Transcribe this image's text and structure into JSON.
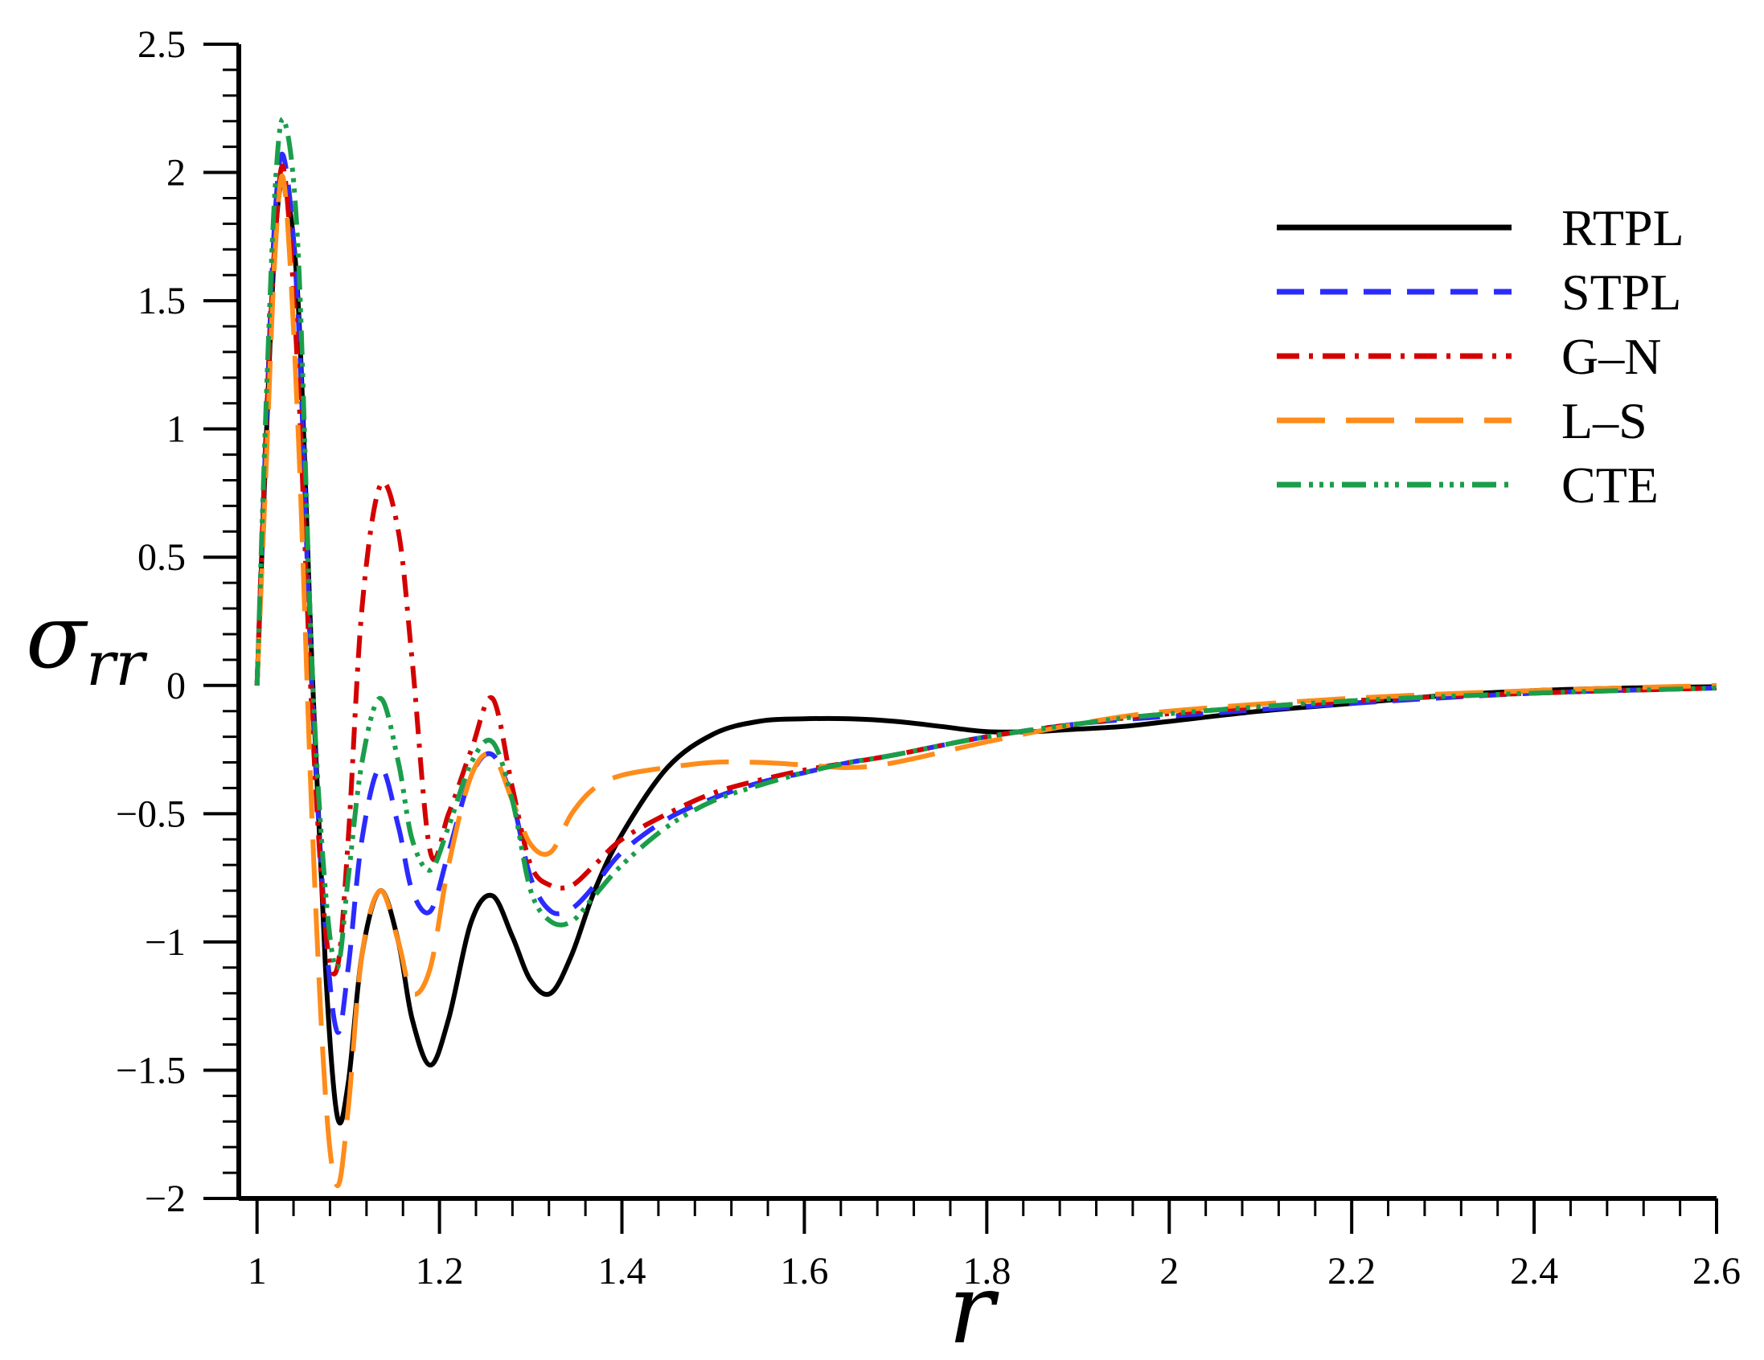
{
  "chart_data": {
    "type": "line",
    "xlabel": "r",
    "ylabel": "σ",
    "ylabel_sub": "rr",
    "xlim": [
      0.98,
      2.6
    ],
    "ylim": [
      -2,
      2.5
    ],
    "xticks": [
      1,
      1.2,
      1.4,
      1.6,
      1.8,
      2,
      2.2,
      2.4,
      2.6
    ],
    "xtick_labels": [
      "1",
      "1.2",
      "1.4",
      "1.6",
      "1.8",
      "2",
      "2.2",
      "2.4",
      "2.6"
    ],
    "yticks": [
      -2,
      -1.5,
      -1,
      -0.5,
      0,
      0.5,
      1,
      1.5,
      2,
      2.5
    ],
    "ytick_labels": [
      "−2",
      "−1.5",
      "−1",
      "−0.5",
      "0",
      "0.5",
      "1",
      "1.5",
      "2",
      "2.5"
    ],
    "grid": false,
    "legend_position": "top-right",
    "series": [
      {
        "name": "RTPL",
        "color": "#000000",
        "dash": "",
        "x": [
          1.0,
          1.01,
          1.02,
          1.03,
          1.045,
          1.06,
          1.075,
          1.088,
          1.1,
          1.115,
          1.135,
          1.155,
          1.17,
          1.19,
          1.21,
          1.235,
          1.258,
          1.28,
          1.3,
          1.322,
          1.345,
          1.37,
          1.4,
          1.45,
          1.5,
          1.55,
          1.6,
          1.65,
          1.7,
          1.75,
          1.8,
          1.85,
          1.9,
          1.95,
          2.0,
          2.1,
          2.2,
          2.3,
          2.4,
          2.5,
          2.6
        ],
        "y": [
          0.0,
          0.95,
          1.75,
          1.95,
          1.5,
          0.1,
          -1.1,
          -1.68,
          -1.55,
          -1.05,
          -0.8,
          -1.0,
          -1.3,
          -1.48,
          -1.3,
          -0.92,
          -0.82,
          -0.98,
          -1.15,
          -1.2,
          -1.05,
          -0.8,
          -0.58,
          -0.32,
          -0.19,
          -0.14,
          -0.13,
          -0.13,
          -0.14,
          -0.16,
          -0.18,
          -0.18,
          -0.17,
          -0.16,
          -0.14,
          -0.1,
          -0.07,
          -0.04,
          -0.02,
          -0.01,
          -0.005
        ]
      },
      {
        "name": "STPL",
        "color": "#2b2bff",
        "dash": "34 20",
        "x": [
          1.0,
          1.01,
          1.02,
          1.03,
          1.045,
          1.06,
          1.075,
          1.088,
          1.1,
          1.115,
          1.135,
          1.155,
          1.17,
          1.19,
          1.21,
          1.235,
          1.258,
          1.28,
          1.3,
          1.322,
          1.345,
          1.37,
          1.4,
          1.45,
          1.5,
          1.55,
          1.6,
          1.65,
          1.7,
          1.8,
          1.9,
          2.0,
          2.2,
          2.4,
          2.6
        ],
        "y": [
          0.0,
          1.0,
          1.85,
          2.05,
          1.45,
          0.0,
          -0.95,
          -1.35,
          -1.1,
          -0.6,
          -0.32,
          -0.55,
          -0.8,
          -0.88,
          -0.65,
          -0.35,
          -0.27,
          -0.45,
          -0.75,
          -0.88,
          -0.87,
          -0.78,
          -0.65,
          -0.52,
          -0.44,
          -0.38,
          -0.34,
          -0.3,
          -0.27,
          -0.2,
          -0.15,
          -0.12,
          -0.07,
          -0.03,
          -0.01
        ]
      },
      {
        "name": "G–N",
        "color": "#d40000",
        "dash": "28 12 5 12",
        "x": [
          1.0,
          1.01,
          1.02,
          1.03,
          1.045,
          1.06,
          1.075,
          1.088,
          1.1,
          1.115,
          1.135,
          1.155,
          1.17,
          1.19,
          1.21,
          1.235,
          1.258,
          1.28,
          1.3,
          1.322,
          1.345,
          1.37,
          1.4,
          1.45,
          1.5,
          1.55,
          1.6,
          1.65,
          1.7,
          1.8,
          1.9,
          2.0,
          2.2,
          2.4,
          2.6
        ],
        "y": [
          0.0,
          1.0,
          1.75,
          2.0,
          1.2,
          -0.1,
          -0.95,
          -1.1,
          -0.6,
          0.3,
          0.78,
          0.6,
          0.1,
          -0.65,
          -0.5,
          -0.25,
          -0.05,
          -0.4,
          -0.7,
          -0.78,
          -0.78,
          -0.7,
          -0.6,
          -0.5,
          -0.42,
          -0.37,
          -0.33,
          -0.3,
          -0.27,
          -0.2,
          -0.15,
          -0.11,
          -0.06,
          -0.03,
          -0.01
        ]
      },
      {
        "name": "L–S",
        "color": "#ff8c1a",
        "dash": "60 26",
        "x": [
          1.0,
          1.01,
          1.02,
          1.03,
          1.045,
          1.06,
          1.075,
          1.088,
          1.1,
          1.115,
          1.135,
          1.155,
          1.17,
          1.19,
          1.21,
          1.235,
          1.258,
          1.28,
          1.3,
          1.322,
          1.345,
          1.37,
          1.4,
          1.45,
          1.5,
          1.55,
          1.6,
          1.65,
          1.7,
          1.8,
          1.9,
          2.0,
          2.2,
          2.4,
          2.6
        ],
        "y": [
          0.0,
          0.85,
          1.7,
          1.95,
          1.0,
          -0.5,
          -1.6,
          -1.95,
          -1.65,
          -1.05,
          -0.8,
          -1.0,
          -1.2,
          -1.1,
          -0.7,
          -0.35,
          -0.27,
          -0.45,
          -0.62,
          -0.65,
          -0.5,
          -0.4,
          -0.35,
          -0.32,
          -0.3,
          -0.3,
          -0.31,
          -0.32,
          -0.3,
          -0.22,
          -0.15,
          -0.1,
          -0.05,
          -0.02,
          0.0
        ]
      },
      {
        "name": "CTE",
        "color": "#1a9e4a",
        "dash": "30 10 5 8 5 8 5 10",
        "x": [
          1.0,
          1.01,
          1.02,
          1.03,
          1.045,
          1.06,
          1.075,
          1.088,
          1.1,
          1.115,
          1.135,
          1.155,
          1.17,
          1.19,
          1.21,
          1.235,
          1.258,
          1.28,
          1.3,
          1.322,
          1.345,
          1.37,
          1.4,
          1.45,
          1.5,
          1.55,
          1.6,
          1.65,
          1.7,
          1.8,
          1.9,
          2.0,
          2.2,
          2.4,
          2.6
        ],
        "y": [
          0.0,
          1.1,
          1.95,
          2.2,
          1.7,
          0.1,
          -0.8,
          -1.1,
          -0.75,
          -0.3,
          -0.05,
          -0.3,
          -0.6,
          -0.72,
          -0.55,
          -0.3,
          -0.22,
          -0.45,
          -0.8,
          -0.92,
          -0.92,
          -0.82,
          -0.7,
          -0.55,
          -0.45,
          -0.39,
          -0.34,
          -0.3,
          -0.27,
          -0.2,
          -0.15,
          -0.11,
          -0.06,
          -0.03,
          -0.01
        ]
      }
    ]
  }
}
